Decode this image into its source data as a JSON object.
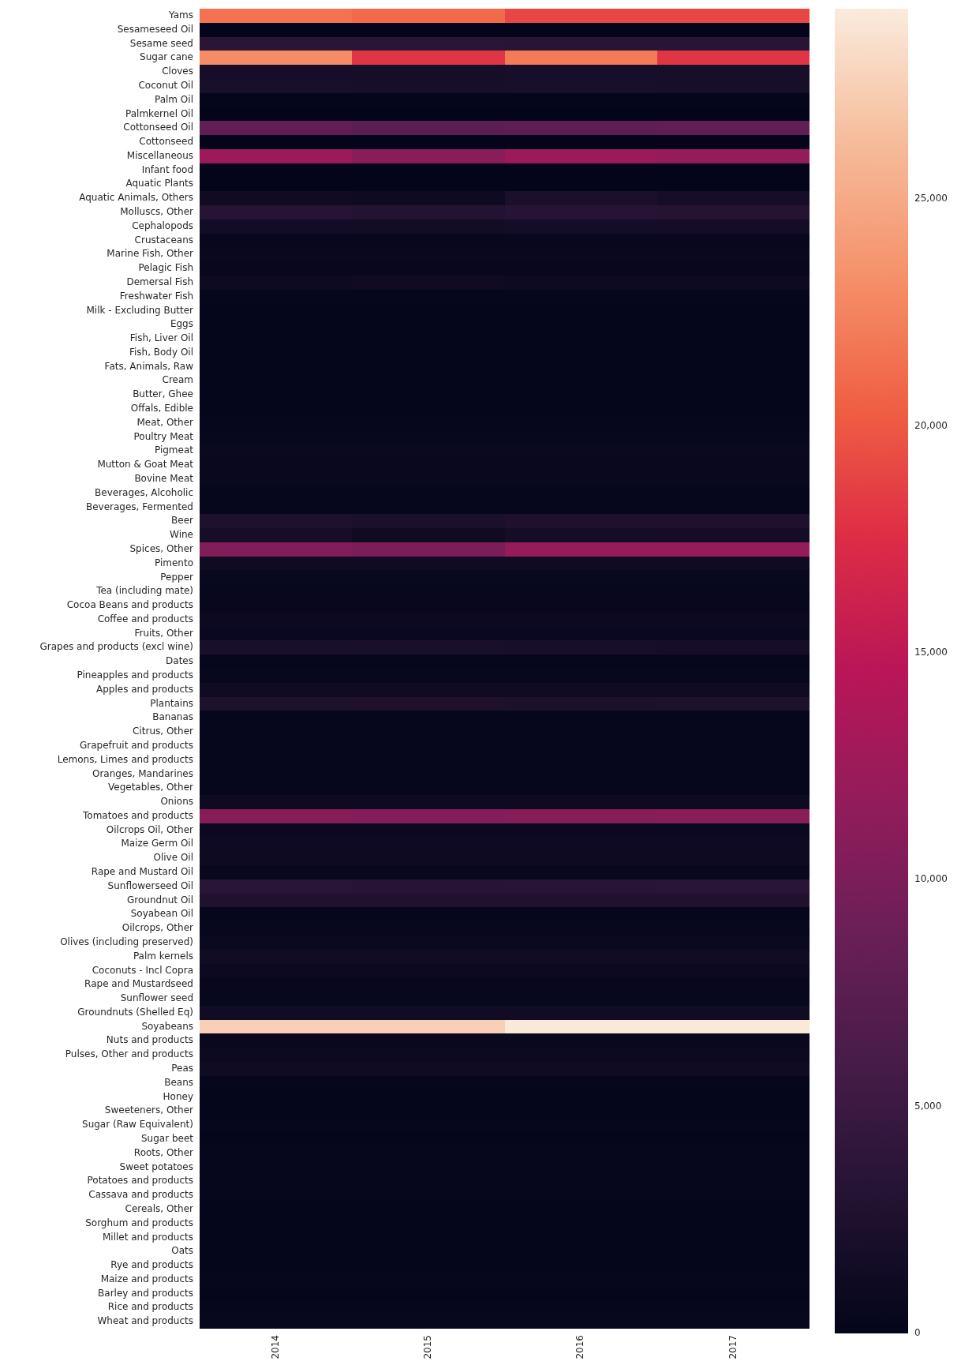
{
  "chart_data": {
    "type": "heatmap",
    "categories": [
      "2014",
      "2015",
      "2016",
      "2017"
    ],
    "y_categories": [
      "Yams",
      "Sesameseed Oil",
      "Sesame seed",
      "Sugar cane",
      "Cloves",
      "Coconut Oil",
      "Palm Oil",
      "Palmkernel Oil",
      "Cottonseed Oil",
      "Cottonseed",
      "Miscellaneous",
      "Infant food",
      "Aquatic Plants",
      "Aquatic Animals, Others",
      "Molluscs, Other",
      "Cephalopods",
      "Crustaceans",
      "Marine Fish, Other",
      "Pelagic Fish",
      "Demersal Fish",
      "Freshwater Fish",
      "Milk - Excluding Butter",
      "Eggs",
      "Fish, Liver Oil",
      "Fish, Body Oil",
      "Fats, Animals, Raw",
      "Cream",
      "Butter, Ghee",
      "Offals, Edible",
      "Meat, Other",
      "Poultry Meat",
      "Pigmeat",
      "Mutton & Goat Meat",
      "Bovine Meat",
      "Beverages, Alcoholic",
      "Beverages, Fermented",
      "Beer",
      "Wine",
      "Spices, Other",
      "Pimento",
      "Pepper",
      "Tea (including mate)",
      "Cocoa Beans and products",
      "Coffee and products",
      "Fruits, Other",
      "Grapes and products (excl wine)",
      "Dates",
      "Pineapples and products",
      "Apples and products",
      "Plantains",
      "Bananas",
      "Citrus, Other",
      "Grapefruit and products",
      "Lemons, Limes and products",
      "Oranges, Mandarines",
      "Vegetables, Other",
      "Onions",
      "Tomatoes and products",
      "Oilcrops Oil, Other",
      "Maize Germ Oil",
      "Olive Oil",
      "Rape and Mustard Oil",
      "Sunflowerseed Oil",
      "Groundnut Oil",
      "Soyabean Oil",
      "Oilcrops, Other",
      "Olives (including preserved)",
      "Palm kernels",
      "Coconuts - Incl Copra",
      "Rape and Mustardseed",
      "Sunflower seed",
      "Groundnuts (Shelled Eq)",
      "Soyabeans",
      "Nuts and products",
      "Pulses, Other and products",
      "Peas",
      "Beans",
      "Honey",
      "Sweeteners, Other",
      "Sugar (Raw Equivalent)",
      "Sugar beet",
      "Roots, Other",
      "Sweet potatoes",
      "Potatoes and products",
      "Cassava and products",
      "Cereals, Other",
      "Sorghum and products",
      "Millet and products",
      "Oats",
      "Rye and products",
      "Maize and products",
      "Barley and products",
      "Rice and products",
      "Wheat and products"
    ],
    "cells": [
      [
        21500,
        21000,
        19000,
        19000
      ],
      [
        100,
        100,
        100,
        100
      ],
      [
        3600,
        3500,
        3400,
        3400
      ],
      [
        23000,
        18000,
        22000,
        18000
      ],
      [
        1800,
        1800,
        1900,
        1900
      ],
      [
        2000,
        1900,
        2000,
        1900
      ],
      [
        200,
        200,
        200,
        200
      ],
      [
        100,
        100,
        100,
        100
      ],
      [
        8000,
        7500,
        7800,
        8000
      ],
      [
        100,
        100,
        100,
        100
      ],
      [
        12500,
        11000,
        12500,
        12000
      ],
      [
        100,
        100,
        100,
        100
      ],
      [
        100,
        100,
        100,
        100
      ],
      [
        1200,
        1000,
        2200,
        1800
      ],
      [
        3200,
        3000,
        3200,
        3100
      ],
      [
        1500,
        1400,
        1600,
        1700
      ],
      [
        500,
        500,
        500,
        500
      ],
      [
        600,
        600,
        600,
        600
      ],
      [
        500,
        500,
        500,
        500
      ],
      [
        1000,
        1200,
        1000,
        1000
      ],
      [
        300,
        300,
        300,
        300
      ],
      [
        200,
        200,
        200,
        200
      ],
      [
        200,
        200,
        200,
        200
      ],
      [
        200,
        200,
        200,
        200
      ],
      [
        200,
        200,
        200,
        200
      ],
      [
        200,
        200,
        200,
        200
      ],
      [
        200,
        200,
        200,
        200
      ],
      [
        200,
        200,
        200,
        200
      ],
      [
        200,
        200,
        200,
        200
      ],
      [
        300,
        300,
        300,
        300
      ],
      [
        400,
        400,
        400,
        400
      ],
      [
        800,
        800,
        800,
        800
      ],
      [
        600,
        600,
        600,
        600
      ],
      [
        600,
        600,
        600,
        600
      ],
      [
        300,
        300,
        300,
        300
      ],
      [
        300,
        300,
        300,
        300
      ],
      [
        2500,
        2300,
        2600,
        2600
      ],
      [
        1800,
        1200,
        1600,
        1700
      ],
      [
        10500,
        10000,
        12000,
        12000
      ],
      [
        1200,
        1200,
        1200,
        1200
      ],
      [
        600,
        600,
        600,
        600
      ],
      [
        400,
        400,
        400,
        400
      ],
      [
        500,
        500,
        500,
        500
      ],
      [
        900,
        900,
        900,
        900
      ],
      [
        700,
        700,
        700,
        700
      ],
      [
        2000,
        2100,
        1900,
        1800
      ],
      [
        300,
        300,
        300,
        300
      ],
      [
        400,
        400,
        400,
        400
      ],
      [
        1200,
        1200,
        1200,
        1200
      ],
      [
        2500,
        2600,
        2400,
        2500
      ],
      [
        300,
        300,
        300,
        300
      ],
      [
        300,
        300,
        300,
        300
      ],
      [
        300,
        300,
        300,
        300
      ],
      [
        300,
        300,
        300,
        300
      ],
      [
        300,
        300,
        300,
        300
      ],
      [
        300,
        300,
        300,
        300
      ],
      [
        1000,
        1000,
        1000,
        1000
      ],
      [
        10800,
        10500,
        10800,
        11000
      ],
      [
        800,
        800,
        800,
        800
      ],
      [
        1100,
        1100,
        1100,
        1100
      ],
      [
        1000,
        1000,
        1000,
        1000
      ],
      [
        600,
        600,
        600,
        600
      ],
      [
        3500,
        3300,
        3400,
        3500
      ],
      [
        2700,
        2700,
        2700,
        2700
      ],
      [
        300,
        300,
        300,
        300
      ],
      [
        400,
        400,
        400,
        400
      ],
      [
        800,
        800,
        800,
        800
      ],
      [
        1300,
        1300,
        1300,
        1300
      ],
      [
        900,
        900,
        900,
        900
      ],
      [
        500,
        500,
        500,
        500
      ],
      [
        400,
        400,
        400,
        400
      ],
      [
        1300,
        1300,
        1300,
        1300
      ],
      [
        27500,
        27500,
        29000,
        29000
      ],
      [
        600,
        600,
        600,
        600
      ],
      [
        900,
        900,
        900,
        900
      ],
      [
        1200,
        1200,
        1200,
        1200
      ],
      [
        300,
        300,
        300,
        300
      ],
      [
        200,
        200,
        200,
        200
      ],
      [
        200,
        200,
        200,
        200
      ],
      [
        300,
        300,
        300,
        300
      ],
      [
        200,
        200,
        200,
        200
      ],
      [
        300,
        300,
        300,
        300
      ],
      [
        300,
        300,
        300,
        300
      ],
      [
        300,
        300,
        300,
        300
      ],
      [
        300,
        300,
        300,
        300
      ],
      [
        200,
        200,
        200,
        200
      ],
      [
        200,
        200,
        200,
        200
      ],
      [
        200,
        200,
        200,
        200
      ],
      [
        200,
        200,
        200,
        200
      ],
      [
        200,
        200,
        200,
        200
      ],
      [
        300,
        300,
        300,
        300
      ],
      [
        200,
        200,
        200,
        200
      ],
      [
        300,
        300,
        300,
        300
      ],
      [
        400,
        400,
        400,
        400
      ]
    ],
    "clim": [
      0,
      29200
    ],
    "cticks": [
      0,
      {
        "value": 5000,
        "label": "5,000"
      },
      {
        "value": 10000,
        "label": "10,000"
      },
      {
        "value": 15000,
        "label": "15,000"
      },
      {
        "value": 20000,
        "label": "20,000"
      },
      {
        "value": 25000,
        "label": "25,000"
      }
    ]
  }
}
